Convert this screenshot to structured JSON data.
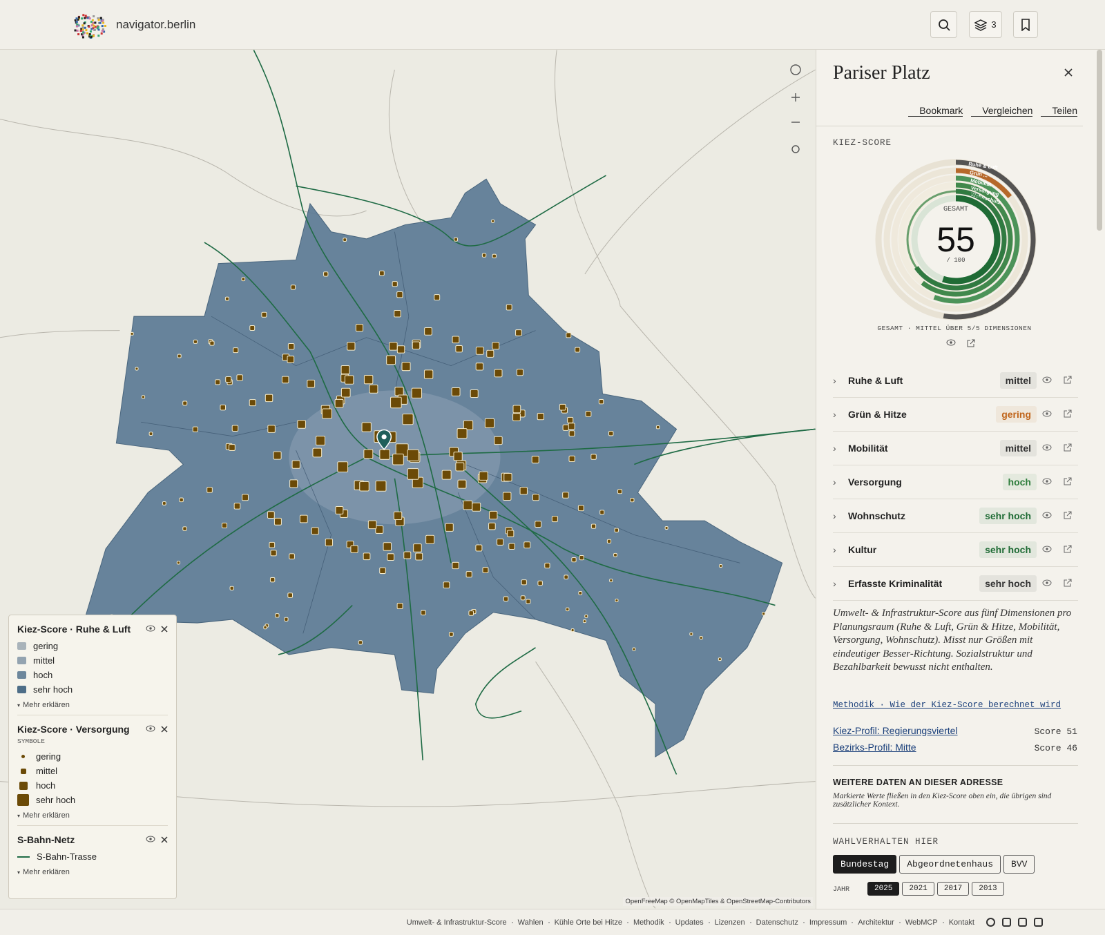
{
  "header": {
    "brand": "navigator.berlin",
    "layers_count": "3"
  },
  "panel": {
    "title": "Pariser Platz",
    "actions": [
      "Bookmark",
      "Vergleichen",
      "Teilen"
    ],
    "score_heading": "KIEZ-SCORE",
    "score": {
      "label": "GESAMT",
      "value": 55,
      "max": {
        "value": 100,
        "label": "/ 100"
      },
      "color": "#1f6b35"
    },
    "ring_labels": [
      "Ruhe & Luft",
      "Grün ...",
      "Mobilität",
      "Versorgung",
      "Wohnschutz"
    ],
    "score_caption": "GESAMT · MITTEL ÜBER 5/5 DIMENSIONEN",
    "dimensions": [
      {
        "name": "Ruhe & Luft",
        "level": "mittel",
        "color": "#333333"
      },
      {
        "name": "Grün & Hitze",
        "level": "gering",
        "color": "#c0651b"
      },
      {
        "name": "Mobilität",
        "level": "mittel",
        "color": "#333333"
      },
      {
        "name": "Versorgung",
        "level": "hoch",
        "color": "#2e7d3c"
      },
      {
        "name": "Wohnschutz",
        "level": "sehr hoch",
        "color": "#1f6b35"
      },
      {
        "name": "Kultur",
        "level": "sehr hoch",
        "color": "#1f6b35"
      },
      {
        "name": "Erfasste Kriminalität",
        "level": "sehr hoch",
        "color": "#333333"
      }
    ],
    "description": "Umwelt- & Infrastruktur-Score aus fünf Dimensionen pro Planungsraum (Ruhe & Luft, Grün & Hitze, Mobilität, Versorgung, Wohnschutz). Misst nur Größen mit eindeutiger Besser-Richtung. Sozialstruktur und Bezahlbarkeit bewusst nicht enthalten.",
    "method_link": "Methodik · Wie der Kiez-Score berechnet wird",
    "profiles": [
      {
        "label": "Kiez-Profil: Regierungsviertel",
        "score": "Score 51"
      },
      {
        "label": "Bezirks-Profil: Mitte",
        "score": "Score 46"
      }
    ],
    "more_title": "WEITERE DATEN AN DIESER ADRESSE",
    "more_note": "Markierte Werte fließen in den Kiez-Score oben ein, die übrigen sind zusätzlicher Kontext.",
    "votes_title": "WAHLVERHALTEN HIER",
    "votes_tabs": [
      "Bundestag",
      "Abgeordnetenhaus",
      "BVV"
    ],
    "votes_tab_selected": 0,
    "year_label": "JAHR",
    "years": [
      "2025",
      "2021",
      "2017",
      "2013"
    ],
    "year_selected": 0
  },
  "legend": [
    {
      "title": "Kiez-Score · Ruhe & Luft",
      "items": [
        {
          "label": "gering",
          "color": "#a9b3ba"
        },
        {
          "label": "mittel",
          "color": "#93a3b0"
        },
        {
          "label": "hoch",
          "color": "#6d879c"
        },
        {
          "label": "sehr hoch",
          "color": "#4e6e88"
        }
      ],
      "more": "Mehr erklären"
    },
    {
      "title": "Kiez-Score · Versorgung",
      "subtitle": "SYMBOLE",
      "items": [
        {
          "label": "gering",
          "color": "#6b4a07"
        },
        {
          "label": "mittel",
          "color": "#6b4a07"
        },
        {
          "label": "hoch",
          "color": "#6b4a07"
        },
        {
          "label": "sehr hoch",
          "color": "#6b4a07"
        }
      ],
      "more": "Mehr erklären"
    },
    {
      "title": "S-Bahn-Netz",
      "items": [
        {
          "label": "S-Bahn-Trasse",
          "color": "#1f6b45"
        }
      ],
      "more": "Mehr erklären"
    }
  ],
  "attribution": "OpenFreeMap © OpenMapTiles & OpenStreetMap-Contributors",
  "footer": [
    "Umwelt- & Infrastruktur-Score",
    "Wahlen",
    "Kühle Orte bei Hitze",
    "Methodik",
    "Updates",
    "Lizenzen",
    "Datenschutz",
    "Impressum",
    "Architektur",
    "WebMCP",
    "Kontakt"
  ]
}
